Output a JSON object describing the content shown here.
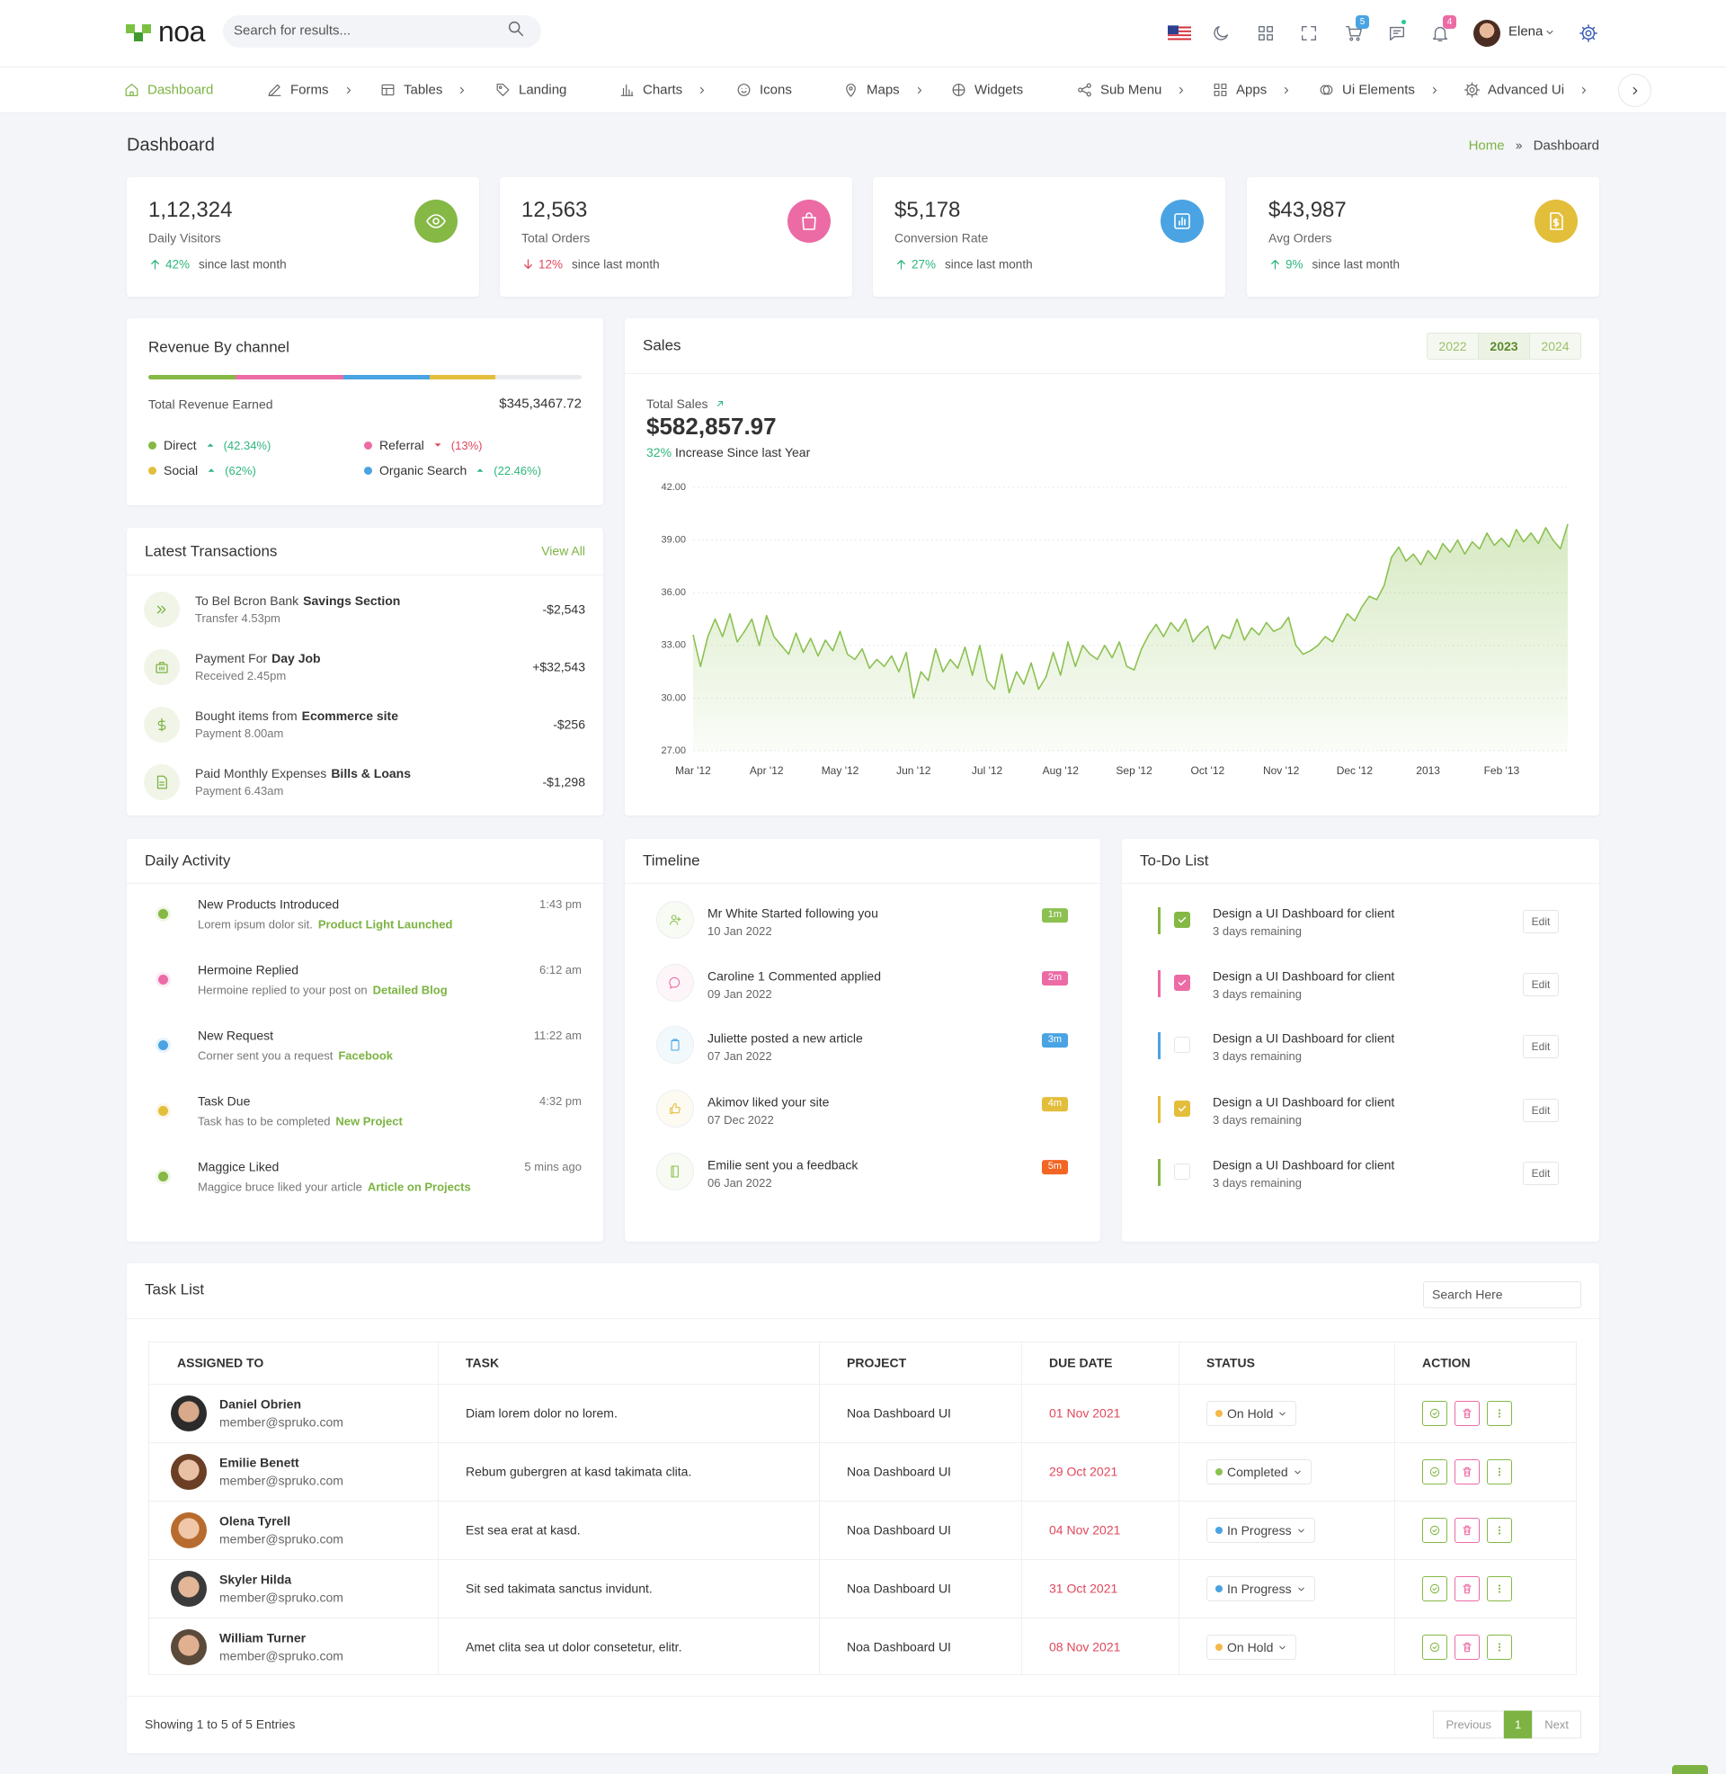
{
  "header": {
    "logo": "noa",
    "search_placeholder": "Search for results...",
    "cart_count": "5",
    "notification_count": "4",
    "user": "Elena"
  },
  "nav": [
    "Dashboard",
    "Forms",
    "Tables",
    "Landing",
    "Charts",
    "Icons",
    "Maps",
    "Widgets",
    "Sub Menu",
    "Apps",
    "Ui Elements",
    "Advanced Ui"
  ],
  "page": {
    "title": "Dashboard",
    "breadcrumb": [
      "Home",
      "Dashboard"
    ]
  },
  "stats": [
    {
      "value": "1,12,324",
      "label": "Daily Visitors",
      "change": "42%",
      "trend": "up",
      "note": "since last month"
    },
    {
      "value": "12,563",
      "label": "Total Orders",
      "change": "12%",
      "trend": "down",
      "note": "since last month"
    },
    {
      "value": "$5,178",
      "label": "Conversion Rate",
      "change": "27%",
      "trend": "up",
      "note": "since last month"
    },
    {
      "value": "$43,987",
      "label": "Avg Orders",
      "change": "9%",
      "trend": "up",
      "note": "since last month"
    }
  ],
  "revenue": {
    "title": "Revenue By channel",
    "total_label": "Total Revenue Earned",
    "total": "$345,3467.72",
    "channels": [
      {
        "name": "Direct",
        "change": "(42.34%)",
        "trend": "up"
      },
      {
        "name": "Referral",
        "change": "(13%)",
        "trend": "down"
      },
      {
        "name": "Social",
        "change": "(62%)",
        "trend": "up"
      },
      {
        "name": "Organic Search",
        "change": "(22.46%)",
        "trend": "up"
      }
    ]
  },
  "transactions": {
    "title": "Latest Transactions",
    "view_all": "View All",
    "items": [
      {
        "title": "To Bel Bcron Bank",
        "highlight": "Savings Section",
        "detail": "Transfer 4.53pm",
        "amount": "-$2,543"
      },
      {
        "title": "Payment For",
        "highlight": "Day Job",
        "detail": "Received 2.45pm",
        "amount": "+$32,543"
      },
      {
        "title": "Bought items from",
        "highlight": "Ecommerce site",
        "detail": "Payment 8.00am",
        "amount": "-$256"
      },
      {
        "title": "Paid Monthly Expenses",
        "highlight": "Bills & Loans",
        "detail": "Payment 6.43am",
        "amount": "-$1,298"
      }
    ]
  },
  "sales": {
    "title": "Sales",
    "years": [
      "2022",
      "2023",
      "2024"
    ],
    "total_label": "Total Sales",
    "total": "$582,857.97",
    "increase": "32%",
    "increase_text": "Increase Since last Year"
  },
  "chart_data": {
    "type": "area",
    "categories": [
      "Mar '12",
      null,
      null,
      null,
      null,
      null,
      null,
      null,
      null,
      null,
      "Apr '12",
      null,
      null,
      null,
      null,
      null,
      null,
      null,
      null,
      null,
      "May '12",
      null,
      null,
      null,
      null,
      null,
      null,
      null,
      null,
      null,
      "Jun '12",
      null,
      null,
      null,
      null,
      null,
      null,
      null,
      null,
      null,
      "Jul '12",
      null,
      null,
      null,
      null,
      null,
      null,
      null,
      null,
      null,
      "Aug '12",
      null,
      null,
      null,
      null,
      null,
      null,
      null,
      null,
      null,
      "Sep '12",
      null,
      null,
      null,
      null,
      null,
      null,
      null,
      null,
      null,
      "Oct '12",
      null,
      null,
      null,
      null,
      null,
      null,
      null,
      null,
      null,
      "Nov '12",
      null,
      null,
      null,
      null,
      null,
      null,
      null,
      null,
      null,
      "Dec '12",
      null,
      null,
      null,
      null,
      null,
      null,
      null,
      null,
      null,
      "2013",
      null,
      null,
      null,
      null,
      null,
      null,
      null,
      null,
      null,
      "Feb '13",
      null,
      null,
      null,
      null,
      null,
      null,
      null,
      null,
      null
    ],
    "values": [
      33.6,
      31.8,
      33.5,
      34.5,
      33.5,
      34.8,
      33.2,
      33.8,
      34.5,
      33.0,
      34.7,
      33.5,
      33.0,
      32.5,
      33.7,
      32.6,
      33.4,
      32.4,
      33.3,
      32.7,
      33.8,
      32.5,
      32.2,
      32.8,
      31.7,
      32.2,
      31.8,
      32.4,
      31.5,
      32.6,
      30.0,
      31.5,
      31.0,
      32.8,
      31.5,
      32.2,
      31.7,
      32.9,
      31.3,
      33.0,
      31.0,
      30.5,
      32.5,
      30.3,
      31.5,
      30.8,
      32.0,
      30.5,
      31.2,
      32.6,
      31.3,
      33.2,
      31.8,
      33.0,
      32.5,
      32.2,
      33.0,
      32.3,
      33.2,
      31.8,
      31.6,
      32.8,
      33.6,
      34.2,
      33.5,
      34.3,
      33.8,
      34.5,
      33.2,
      33.7,
      34.1,
      32.8,
      33.6,
      33.4,
      34.5,
      33.3,
      34.0,
      33.6,
      34.3,
      33.8,
      34.0,
      34.6,
      33.0,
      32.5,
      32.7,
      33.0,
      33.5,
      33.2,
      34.0,
      34.8,
      34.4,
      35.2,
      35.8,
      35.6,
      36.4,
      38.0,
      38.6,
      37.8,
      38.2,
      37.6,
      38.4,
      37.9,
      38.8,
      38.3,
      39.0,
      38.2,
      38.9,
      38.5,
      39.4,
      38.7,
      39.1,
      38.6,
      39.6,
      38.9,
      39.4,
      38.8,
      39.7,
      39.0,
      38.5,
      39.9
    ],
    "color": "#8cc152",
    "ylim": [
      27,
      42
    ],
    "yticks": [
      {
        "value": 27,
        "label": "27.00"
      },
      {
        "value": 30,
        "label": "30.00"
      },
      {
        "value": 33,
        "label": "33.00"
      },
      {
        "value": 36,
        "label": "36.00"
      },
      {
        "value": 39,
        "label": "39.00"
      },
      {
        "value": 42,
        "label": "42.00"
      }
    ],
    "grid": true
  },
  "activity": {
    "title": "Daily Activity",
    "items": [
      {
        "title": "New Products Introduced",
        "time": "1:43 pm",
        "text": "Lorem ipsum dolor sit.",
        "link": "Product Light Launched"
      },
      {
        "title": "Hermoine Replied",
        "time": "6:12 am",
        "text": "Hermoine replied to your post on",
        "link": "Detailed Blog"
      },
      {
        "title": "New Request",
        "time": "11:22 am",
        "text": "Corner sent you a request",
        "link": "Facebook"
      },
      {
        "title": "Task Due",
        "time": "4:32 pm",
        "text": "Task has to be completed",
        "link": "New Project"
      },
      {
        "title": "Maggice Liked",
        "time": "5 mins ago",
        "text": "Maggice bruce liked your article",
        "link": "Article on Projects"
      }
    ]
  },
  "timeline": {
    "title": "Timeline",
    "items": [
      {
        "text": "Mr White Started following you",
        "date": "10 Jan 2022",
        "badge": "1m"
      },
      {
        "text": "Caroline 1 Commented applied",
        "date": "09 Jan 2022",
        "badge": "2m"
      },
      {
        "text": "Juliette posted a new article",
        "date": "07 Jan 2022",
        "badge": "3m"
      },
      {
        "text": "Akimov liked your site",
        "date": "07 Dec 2022",
        "badge": "4m"
      },
      {
        "text": "Emilie sent you a feedback",
        "date": "06 Jan 2022",
        "badge": "5m"
      }
    ]
  },
  "todo": {
    "title": "To-Do List",
    "items": [
      {
        "text": "Design a UI Dashboard for client",
        "sub": "3 days remaining",
        "checked": true,
        "button": "Edit"
      },
      {
        "text": "Design a UI Dashboard for client",
        "sub": "3 days remaining",
        "checked": true,
        "button": "Edit"
      },
      {
        "text": "Design a UI Dashboard for client",
        "sub": "3 days remaining",
        "checked": false,
        "button": "Edit"
      },
      {
        "text": "Design a UI Dashboard for client",
        "sub": "3 days remaining",
        "checked": true,
        "button": "Edit"
      },
      {
        "text": "Design a UI Dashboard for client",
        "sub": "3 days remaining",
        "checked": false,
        "button": "Edit"
      }
    ]
  },
  "tasks": {
    "title": "Task List",
    "search_placeholder": "Search Here",
    "columns": [
      "ASSIGNED TO",
      "TASK",
      "PROJECT",
      "DUE DATE",
      "STATUS",
      "ACTION"
    ],
    "rows": [
      {
        "name": "Daniel Obrien",
        "email": "member@spruko.com",
        "task": "Diam lorem dolor no lorem.",
        "project": "Noa Dashboard UI",
        "due": "01 Nov 2021",
        "status": "On Hold",
        "status_color": "#f5b849"
      },
      {
        "name": "Emilie Benett",
        "email": "member@spruko.com",
        "task": "Rebum gubergren at kasd takimata clita.",
        "project": "Noa Dashboard UI",
        "due": "29 Oct 2021",
        "status": "Completed",
        "status_color": "#8cc152"
      },
      {
        "name": "Olena Tyrell",
        "email": "member@spruko.com",
        "task": "Est sea erat at kasd.",
        "project": "Noa Dashboard UI",
        "due": "04 Nov 2021",
        "status": "In Progress",
        "status_color": "#4aa3e3"
      },
      {
        "name": "Skyler Hilda",
        "email": "member@spruko.com",
        "task": "Sit sed takimata sanctus invidunt.",
        "project": "Noa Dashboard UI",
        "due": "31 Oct 2021",
        "status": "In Progress",
        "status_color": "#4aa3e3"
      },
      {
        "name": "William Turner",
        "email": "member@spruko.com",
        "task": "Amet clita sea ut dolor consetetur, elitr.",
        "project": "Noa Dashboard UI",
        "due": "08 Nov 2021",
        "status": "On Hold",
        "status_color": "#f5b849"
      }
    ],
    "footer": "Showing 1 to 5 of 5 Entries",
    "pagination": [
      "Previous",
      "1",
      "Next"
    ]
  }
}
